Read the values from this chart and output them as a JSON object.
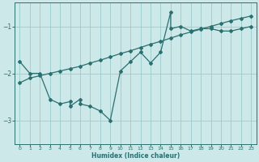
{
  "xlabel": "Humidex (Indice chaleur)",
  "bg_color": "#cce8e8",
  "line_color": "#2a7070",
  "grid_color": "#99cccc",
  "xlim": [
    -0.5,
    23.5
  ],
  "ylim": [
    -3.5,
    -0.5
  ],
  "yticks": [
    -3,
    -2,
    -1
  ],
  "xticks": [
    0,
    1,
    2,
    3,
    4,
    5,
    6,
    7,
    8,
    9,
    10,
    11,
    12,
    13,
    14,
    15,
    16,
    17,
    18,
    19,
    20,
    21,
    22,
    23
  ],
  "line1_x": [
    0,
    1,
    2,
    3,
    4,
    5,
    5,
    6,
    6,
    7,
    8,
    9,
    10,
    11,
    12,
    13,
    14,
    15,
    15,
    16,
    17,
    18,
    19,
    20,
    21,
    22,
    23
  ],
  "line1_y": [
    -1.75,
    -2.0,
    -2.0,
    -2.55,
    -2.65,
    -2.6,
    -2.7,
    -2.55,
    -2.65,
    -2.7,
    -2.8,
    -3.0,
    -1.95,
    -1.75,
    -1.55,
    -1.78,
    -1.55,
    -0.7,
    -1.05,
    -1.0,
    -1.1,
    -1.05,
    -1.05,
    -1.1,
    -1.1,
    -1.05,
    -1.0
  ],
  "line2_x": [
    0,
    1,
    2,
    3,
    4,
    5,
    6,
    7,
    8,
    9,
    10,
    11,
    12,
    13,
    14,
    15,
    16,
    17,
    18,
    19,
    20,
    21,
    22,
    23
  ],
  "line2_y": [
    -2.2,
    -2.1,
    -2.05,
    -2.0,
    -1.95,
    -1.9,
    -1.85,
    -1.78,
    -1.72,
    -1.65,
    -1.58,
    -1.52,
    -1.45,
    -1.38,
    -1.32,
    -1.25,
    -1.18,
    -1.12,
    -1.06,
    -1.0,
    -0.94,
    -0.88,
    -0.83,
    -0.78
  ]
}
